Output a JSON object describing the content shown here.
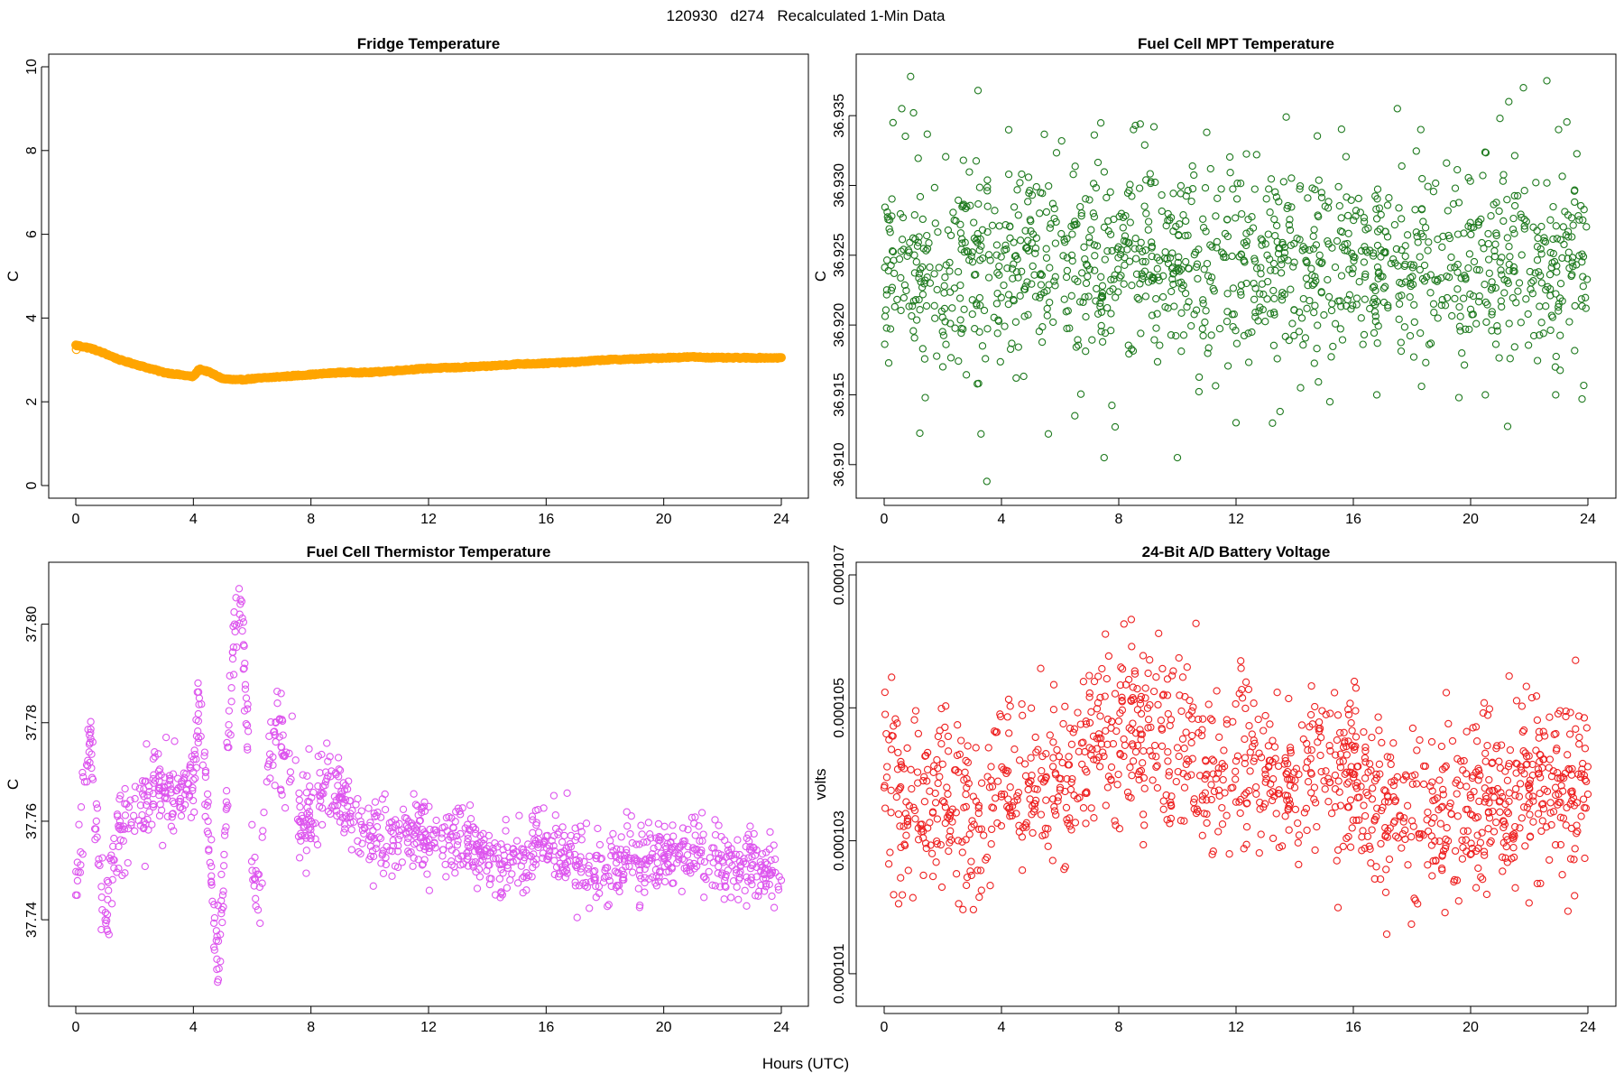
{
  "page_title": "120930   d274   Recalculated 1-Min Data",
  "x_axis_label": "Hours (UTC)",
  "chart_data": [
    {
      "id": "fridge",
      "type": "scatter",
      "title": "Fridge Temperature",
      "xlabel": "",
      "ylabel": "C",
      "color": "#ffa500",
      "dense": true,
      "xlim": [
        0,
        24
      ],
      "ylim": [
        0,
        10
      ],
      "xticks": [
        "0",
        "4",
        "8",
        "12",
        "16",
        "20",
        "24"
      ],
      "yticks": [
        "0",
        "2",
        "4",
        "6",
        "8",
        "10"
      ],
      "series": [
        {
          "name": "Fridge Temperature",
          "x": [
            0,
            0.5,
            1,
            1.5,
            2,
            2.5,
            3,
            3.5,
            4,
            4.2,
            4.5,
            5,
            5.5,
            6,
            7,
            8,
            9,
            10,
            11,
            12,
            13,
            14,
            15,
            16,
            17,
            18,
            19,
            20,
            21,
            22,
            23,
            24
          ],
          "y": [
            3.35,
            3.28,
            3.15,
            3.0,
            2.9,
            2.8,
            2.7,
            2.65,
            2.6,
            2.78,
            2.72,
            2.55,
            2.52,
            2.55,
            2.6,
            2.65,
            2.7,
            2.7,
            2.75,
            2.8,
            2.82,
            2.85,
            2.9,
            2.92,
            2.95,
            3.0,
            3.02,
            3.05,
            3.07,
            3.05,
            3.05,
            3.05
          ]
        }
      ]
    },
    {
      "id": "mpt",
      "type": "scatter",
      "title": "Fuel Cell MPT Temperature",
      "xlabel": "",
      "ylabel": "C",
      "color": "#1f7a1f",
      "xlim": [
        0,
        24
      ],
      "ylim": [
        36.9085,
        36.9385
      ],
      "xticks": [
        "0",
        "4",
        "8",
        "12",
        "16",
        "20",
        "24"
      ],
      "yticks": [
        "36.910",
        "36.915",
        "36.920",
        "36.925",
        "36.930",
        "36.935"
      ],
      "series": [
        {
          "name": "Fuel Cell MPT Temperature",
          "x": [
            0.9,
            3.2,
            3.5,
            22.6,
            21.8,
            7.5,
            9.2,
            1.0,
            0.3,
            10.0,
            3.3,
            5.6,
            12.0,
            15.2,
            16.8,
            19.6,
            23.8,
            0.6,
            2.0,
            4.5,
            6.5,
            8.5,
            11.0,
            13.5,
            14.2,
            17.5,
            18.3,
            20.5,
            21.3,
            23.0,
            2.7,
            1.4,
            12.7,
            21.0,
            22.9
          ],
          "y": [
            36.9378,
            36.9368,
            36.9088,
            36.9375,
            36.937,
            36.9105,
            36.9342,
            36.9352,
            36.9345,
            36.9105,
            36.9122,
            36.9122,
            36.913,
            36.9145,
            36.915,
            36.9148,
            36.9147,
            36.9355,
            36.917,
            36.9162,
            36.9135,
            36.934,
            36.9338,
            36.9138,
            36.9155,
            36.9355,
            36.934,
            36.915,
            36.936,
            36.934,
            36.9318,
            36.9148,
            36.9322,
            36.9348,
            36.915
          ]
        }
      ]
    },
    {
      "id": "thermistor",
      "type": "scatter",
      "title": "Fuel Cell Thermistor Temperature",
      "xlabel": "",
      "ylabel": "C",
      "color": "#dd55ee",
      "xlim": [
        0,
        24
      ],
      "ylim": [
        37.725,
        37.81
      ],
      "xticks": [
        "0",
        "4",
        "8",
        "12",
        "16",
        "20",
        "24"
      ],
      "yticks": [
        "37.74",
        "37.76",
        "37.78",
        "37.80"
      ],
      "series": [
        {
          "name": "Fuel Cell Thermistor Temperature",
          "x": [
            0.0,
            0.3,
            0.5,
            0.7,
            0.9,
            1.0,
            1.2,
            1.5,
            2.0,
            2.5,
            3.0,
            3.5,
            4.0,
            4.2,
            4.5,
            4.8,
            5.0,
            5.2,
            5.4,
            5.6,
            5.8,
            6.0,
            6.2,
            6.5,
            6.8,
            7.0,
            7.3,
            7.6,
            8.0,
            8.5,
            9.0,
            10.0,
            11.0,
            12.0,
            13.0,
            14.0,
            15.0,
            16.0,
            17.0,
            18.0,
            19.0,
            20.0,
            21.0,
            22.0,
            23.0,
            24.0
          ],
          "y": [
            37.745,
            37.768,
            37.778,
            37.76,
            37.742,
            37.74,
            37.752,
            37.76,
            37.758,
            37.766,
            37.767,
            37.764,
            37.77,
            37.785,
            37.76,
            37.732,
            37.745,
            37.775,
            37.8,
            37.805,
            37.785,
            37.75,
            37.742,
            37.768,
            37.78,
            37.775,
            37.77,
            37.76,
            37.76,
            37.768,
            37.765,
            37.757,
            37.758,
            37.755,
            37.756,
            37.753,
            37.752,
            37.757,
            37.751,
            37.75,
            37.752,
            37.753,
            37.754,
            37.752,
            37.751,
            37.748
          ]
        }
      ]
    },
    {
      "id": "battery",
      "type": "scatter",
      "title": "24-Bit A/D Battery Voltage",
      "xlabel": "",
      "ylabel": "volts",
      "color": "#ee2222",
      "xlim": [
        0,
        24
      ],
      "ylim": [
        0.0001007,
        0.000107
      ],
      "xticks": [
        "0",
        "4",
        "8",
        "12",
        "16",
        "20",
        "24"
      ],
      "yticks": [
        "0.000101",
        "0.000103",
        "0.000105",
        "0.000107"
      ],
      "series": [
        {
          "name": "24-Bit A/D Battery Voltage",
          "x": [
            0.0,
            1.0,
            2.0,
            3.0,
            4.0,
            5.0,
            6.0,
            7.0,
            8.0,
            9.0,
            10.0,
            11.0,
            12.0,
            13.0,
            14.0,
            15.0,
            16.0,
            17.0,
            18.0,
            19.0,
            20.0,
            21.0,
            22.0,
            23.0,
            24.0
          ],
          "y": [
            0.0001038,
            0.0001035,
            0.0001036,
            0.0001033,
            0.0001037,
            0.0001039,
            0.0001038,
            0.0001044,
            0.0001048,
            0.0001047,
            0.0001044,
            0.000104,
            0.0001042,
            0.000104,
            0.0001038,
            0.0001039,
            0.000104,
            0.0001035,
            0.0001033,
            0.0001035,
            0.0001034,
            0.0001036,
            0.0001038,
            0.0001037,
            0.0001037
          ]
        }
      ]
    }
  ]
}
